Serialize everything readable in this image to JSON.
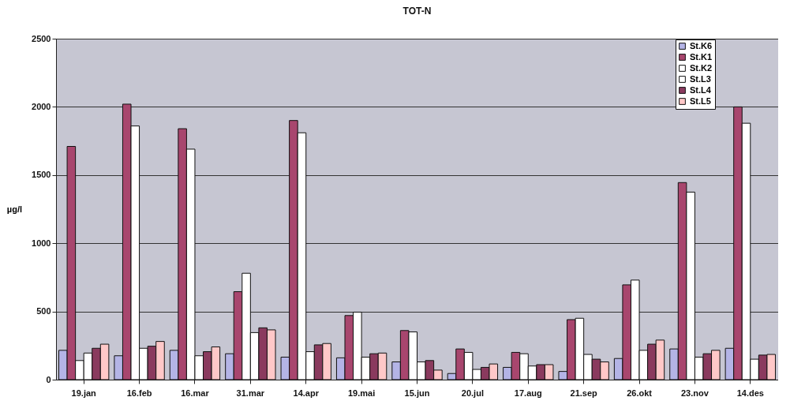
{
  "chart_data": {
    "type": "bar",
    "title": "TOT-N",
    "ylabel": "µg/l",
    "categories": [
      "19.jan",
      "16.feb",
      "16.mar",
      "31.mar",
      "14.apr",
      "19.mai",
      "15.jun",
      "20.jul",
      "17.aug",
      "21.sep",
      "26.okt",
      "23.nov",
      "14.des"
    ],
    "series": [
      {
        "name": "St.K6",
        "color": "#b4b4e6",
        "values": [
          215,
          175,
          215,
          190,
          165,
          160,
          130,
          45,
          90,
          60,
          155,
          225,
          230
        ]
      },
      {
        "name": "St.K1",
        "color": "#a8466e",
        "values": [
          1710,
          2020,
          1840,
          645,
          1900,
          470,
          360,
          225,
          200,
          440,
          695,
          1445,
          2000
        ]
      },
      {
        "name": "St.K2",
        "color": "#ffffff",
        "values": [
          140,
          1860,
          1690,
          780,
          1810,
          495,
          350,
          200,
          190,
          450,
          730,
          1375,
          1880
        ]
      },
      {
        "name": "St.L3",
        "color": "#ffffff",
        "values": [
          195,
          230,
          175,
          345,
          205,
          165,
          130,
          75,
          100,
          185,
          215,
          165,
          150
        ]
      },
      {
        "name": "St.L4",
        "color": "#8a3a5e",
        "values": [
          230,
          245,
          205,
          380,
          255,
          190,
          140,
          90,
          110,
          150,
          260,
          190,
          180
        ]
      },
      {
        "name": "St.L5",
        "color": "#ffc8c8",
        "values": [
          260,
          280,
          240,
          365,
          265,
          195,
          70,
          115,
          110,
          130,
          290,
          215,
          185
        ]
      }
    ],
    "ylim": [
      0,
      2500
    ],
    "yticks": [
      0,
      500,
      1000,
      1500,
      2000,
      2500
    ],
    "grid": "y",
    "legend": "top right"
  }
}
